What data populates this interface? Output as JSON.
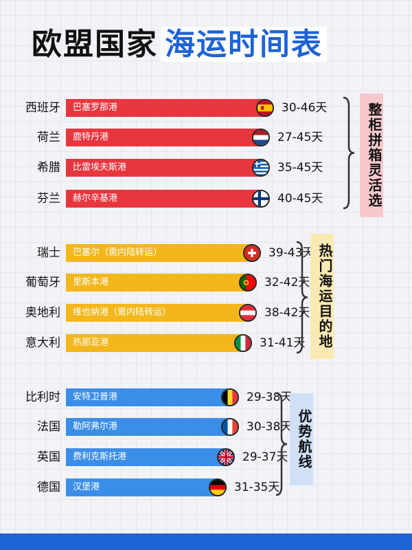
{
  "title_part1": "欧盟国家",
  "title_part2": "海运时间表",
  "colors": {
    "red": "#e8363f",
    "yellow": "#f3b61b",
    "blue": "#3b8ee8"
  },
  "groups": [
    {
      "name": "整柜拼箱灵活选",
      "box_color": "#f6c8cc"
    },
    {
      "name": "热门海运目的地",
      "box_color": "#fbe9b3"
    },
    {
      "name": "优势航线",
      "box_color": "#cfe0f8"
    }
  ],
  "chart_data": {
    "type": "bar",
    "title": "欧盟国家海运时间表",
    "unit": "天",
    "categories": [
      "西班牙",
      "荷兰",
      "希腊",
      "芬兰",
      "瑞士",
      "葡萄牙",
      "奥地利",
      "意大利",
      "比利时",
      "法国",
      "英国",
      "德国"
    ],
    "series": [
      {
        "values_min": [
          30,
          27,
          35,
          40,
          39,
          32,
          38,
          31,
          29,
          30,
          29,
          31
        ],
        "values_max": [
          46,
          45,
          45,
          45,
          43,
          42,
          42,
          41,
          38,
          38,
          37,
          35
        ]
      }
    ],
    "ports": [
      "巴塞罗那港",
      "鹿特丹港",
      "比雷埃夫斯港",
      "赫尔辛基港",
      "巴塞尔（需内陆转运）",
      "里斯本港",
      "维也纳港（需内陆转运）",
      "热那亚港",
      "安特卫普港",
      "勒阿弗尔港",
      "费利克斯托港",
      "汉堡港"
    ],
    "day_labels": [
      "30-46天",
      "27-45天",
      "35-45天",
      "40-45天",
      "39-43天",
      "32-42天",
      "38-42天",
      "31-41天",
      "29-38天",
      "30-38天",
      "29-37天",
      "31-35天"
    ],
    "group_index": [
      0,
      0,
      0,
      0,
      1,
      1,
      1,
      1,
      2,
      2,
      2,
      2
    ],
    "flags": [
      "spain-flag-icon",
      "netherlands-flag-icon",
      "greece-flag-icon",
      "finland-flag-icon",
      "switzerland-flag-icon",
      "portugal-flag-icon",
      "austria-flag-icon",
      "italy-flag-icon",
      "belgium-flag-icon",
      "france-flag-icon",
      "uk-flag-icon",
      "germany-flag-icon"
    ]
  }
}
